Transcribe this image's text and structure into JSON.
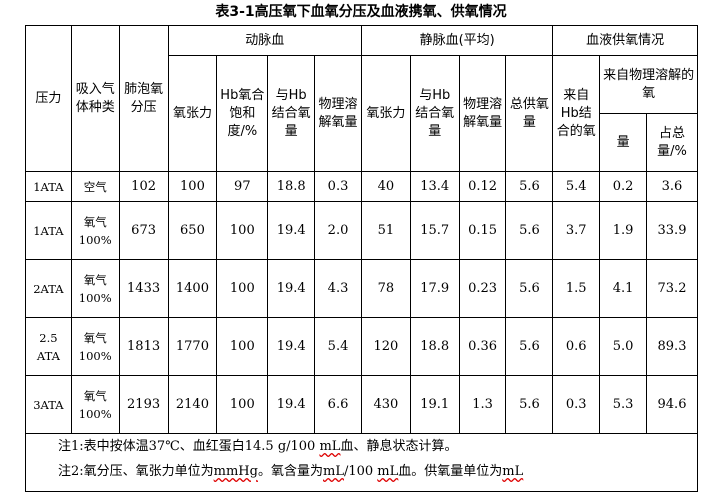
{
  "title": "表3-1高压氧下血氧分压及血液携氧、供氧情况",
  "headers": {
    "pressure": "压力",
    "gas": "吸入气体种类",
    "alveolar": "肺泡氧分压",
    "arterial": "动脉血",
    "venous": "静脉血(平均)",
    "supply": "血液供氧情况",
    "art_po2": "氧张力",
    "art_sat": "Hb氧合饱和度/%",
    "art_hb": "与Hb结合氧量",
    "art_phys": "物理溶解氧量",
    "ven_po2": "氧张力",
    "ven_hb": "与Hb结合氧量",
    "ven_phys": "物理溶解氧量",
    "ven_total": "总供氧量",
    "sup_hb": "来自Hb结合的氧",
    "sup_phys": "来自物理溶解的氧",
    "sup_amount": "量",
    "sup_pct": "占总量/%"
  },
  "rows": [
    {
      "pressure": "1ATA",
      "gas": "空气",
      "alveolar": "102",
      "art_po2": "100",
      "art_sat": "97",
      "art_hb": "18.8",
      "art_phys": "0.3",
      "ven_po2": "40",
      "ven_hb": "13.4",
      "ven_phys": "0.12",
      "ven_total": "5.6",
      "sup_hb": "5.4",
      "sup_amount": "0.2",
      "sup_pct": "3.6"
    },
    {
      "pressure": "1ATA",
      "gas": "氧气100%",
      "alveolar": "673",
      "art_po2": "650",
      "art_sat": "100",
      "art_hb": "19.4",
      "art_phys": "2.0",
      "ven_po2": "51",
      "ven_hb": "15.7",
      "ven_phys": "0.15",
      "ven_total": "5.6",
      "sup_hb": "3.7",
      "sup_amount": "1.9",
      "sup_pct": "33.9"
    },
    {
      "pressure": "2ATA",
      "gas": "氧气100%",
      "alveolar": "1433",
      "art_po2": "1400",
      "art_sat": "100",
      "art_hb": "19.4",
      "art_phys": "4.3",
      "ven_po2": "78",
      "ven_hb": "17.9",
      "ven_phys": "0.23",
      "ven_total": "5.6",
      "sup_hb": "1.5",
      "sup_amount": "4.1",
      "sup_pct": "73.2"
    },
    {
      "pressure": "2.5 ATA",
      "gas": "氧气100%",
      "alveolar": "1813",
      "art_po2": "1770",
      "art_sat": "100",
      "art_hb": "19.4",
      "art_phys": "5.4",
      "ven_po2": "120",
      "ven_hb": "18.8",
      "ven_phys": "0.36",
      "ven_total": "5.6",
      "sup_hb": "0.6",
      "sup_amount": "5.0",
      "sup_pct": "89.3"
    },
    {
      "pressure": "3ATA",
      "gas": "氧气100%",
      "alveolar": "2193",
      "art_po2": "2140",
      "art_sat": "100",
      "art_hb": "19.4",
      "art_phys": "6.6",
      "ven_po2": "430",
      "ven_hb": "19.1",
      "ven_phys": "1.3",
      "ven_total": "5.6",
      "sup_hb": "0.3",
      "sup_amount": "5.3",
      "sup_pct": "94.6"
    }
  ],
  "notes": {
    "note1_prefix": "注1:表中按体温37℃、血红蛋白14.5 g/100 ",
    "note1_unit": "mL",
    "note1_suffix": "血、静息状态计算。",
    "note2_a": "注2:氧分压、氧张力单位为",
    "note2_unit1": "mmHg",
    "note2_b": "。氧含量为",
    "note2_unit2": "mL",
    "note2_c": "/100 ",
    "note2_unit3": "mL",
    "note2_d": "血。供氧量单位为",
    "note2_unit4": "mL"
  }
}
